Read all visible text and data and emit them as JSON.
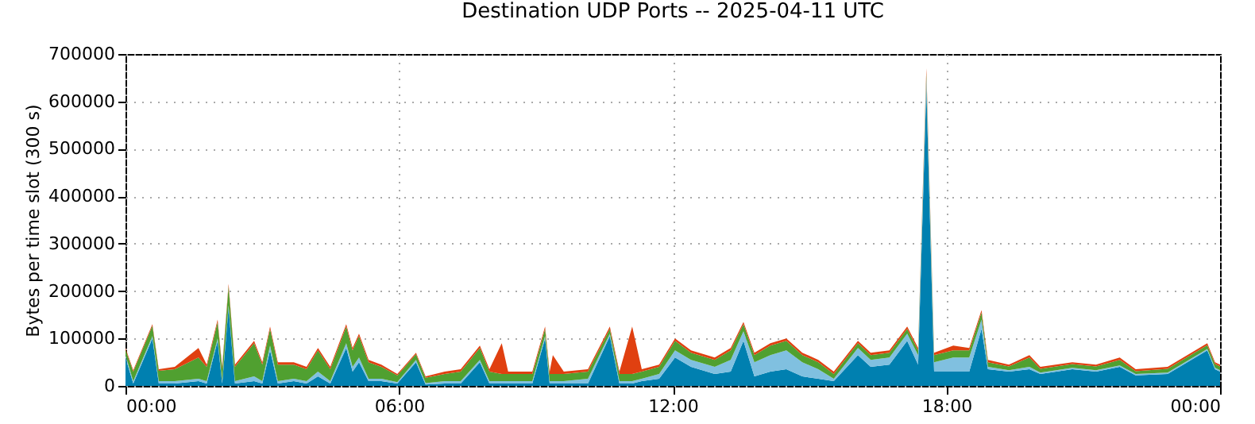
{
  "chart_data": {
    "type": "area",
    "title": "Destination UDP Ports -- 2025-04-11 UTC",
    "ylabel": "Bytes per time slot (300 s)",
    "stacked": true,
    "grid": true,
    "x": [
      0,
      0.17,
      0.59,
      0.73,
      1.08,
      1.6,
      1.78,
      2.02,
      2.12,
      2.26,
      2.4,
      2.82,
      3.0,
      3.17,
      3.34,
      3.69,
      3.97,
      4.22,
      4.49,
      4.84,
      4.98,
      5.12,
      5.33,
      5.61,
      5.96,
      6.37,
      6.58,
      7.0,
      7.35,
      7.77,
      7.98,
      8.25,
      8.39,
      8.92,
      9.2,
      9.3,
      9.37,
      9.61,
      10.14,
      10.62,
      10.83,
      11.11,
      11.32,
      11.7,
      12.05,
      12.4,
      12.92,
      13.27,
      13.55,
      13.79,
      14.14,
      14.49,
      14.84,
      15.19,
      15.53,
      16.06,
      16.34,
      16.75,
      17.14,
      17.38,
      17.56,
      17.73,
      18.15,
      18.5,
      18.77,
      18.91,
      19.37,
      19.82,
      20.06,
      20.76,
      21.28,
      21.8,
      22.15,
      22.85,
      23.72,
      23.89,
      24.0
    ],
    "series": [
      {
        "color": "#0080b0",
        "values": [
          60000,
          5000,
          100000,
          5000,
          5000,
          10000,
          5000,
          95000,
          5000,
          165000,
          5000,
          10000,
          5000,
          75000,
          5000,
          10000,
          5000,
          20000,
          5000,
          80000,
          30000,
          50000,
          10000,
          10000,
          5000,
          50000,
          3000,
          5000,
          5000,
          50000,
          5000,
          5000,
          5000,
          5000,
          100000,
          5000,
          5000,
          5000,
          5000,
          105000,
          5000,
          5000,
          10000,
          15000,
          60000,
          40000,
          25000,
          30000,
          95000,
          20000,
          30000,
          35000,
          20000,
          15000,
          10000,
          65000,
          40000,
          45000,
          95000,
          45000,
          630000,
          30000,
          30000,
          30000,
          120000,
          35000,
          30000,
          35000,
          25000,
          35000,
          30000,
          40000,
          22000,
          25000,
          75000,
          35000,
          30000
        ]
      },
      {
        "color": "#80c0e0",
        "values": [
          5000,
          5000,
          5000,
          5000,
          5000,
          5000,
          5000,
          5000,
          5000,
          5000,
          5000,
          10000,
          5000,
          10000,
          5000,
          5000,
          5000,
          10000,
          5000,
          10000,
          10000,
          10000,
          5000,
          5000,
          3000,
          5000,
          3000,
          5000,
          5000,
          5000,
          5000,
          5000,
          5000,
          5000,
          5000,
          5000,
          5000,
          5000,
          10000,
          5000,
          5000,
          5000,
          5000,
          10000,
          15000,
          15000,
          15000,
          25000,
          20000,
          30000,
          35000,
          40000,
          30000,
          20000,
          5000,
          15000,
          15000,
          15000,
          15000,
          20000,
          20000,
          20000,
          30000,
          30000,
          20000,
          5000,
          3000,
          5000,
          3000,
          3000,
          3000,
          3000,
          3000,
          3000,
          3000,
          3000,
          3000
        ]
      },
      {
        "color": "#50a030",
        "values": [
          12000,
          20000,
          22000,
          22000,
          25000,
          45000,
          30000,
          35000,
          25000,
          40000,
          30000,
          70000,
          35000,
          35000,
          35000,
          30000,
          25000,
          45000,
          25000,
          35000,
          35000,
          45000,
          35000,
          25000,
          14000,
          12000,
          11000,
          15000,
          20000,
          25000,
          20000,
          15000,
          15000,
          15000,
          15000,
          15000,
          15000,
          15000,
          15000,
          10000,
          15000,
          15000,
          15000,
          15000,
          20000,
          15000,
          15000,
          20000,
          15000,
          15000,
          20000,
          20000,
          15000,
          15000,
          10000,
          10000,
          10000,
          10000,
          10000,
          10000,
          10000,
          15000,
          15000,
          15000,
          15000,
          10000,
          8000,
          20000,
          8000,
          8000,
          8000,
          12000,
          6000,
          8000,
          8000,
          8000,
          8000
        ]
      },
      {
        "color": "#e04010",
        "values": [
          3000,
          3000,
          3000,
          3000,
          5000,
          20000,
          5000,
          5000,
          5000,
          5000,
          5000,
          5000,
          5000,
          5000,
          5000,
          5000,
          5000,
          5000,
          5000,
          5000,
          5000,
          5000,
          5000,
          5000,
          3000,
          3000,
          3000,
          5000,
          5000,
          5000,
          5000,
          65000,
          5000,
          5000,
          5000,
          5000,
          40000,
          5000,
          5000,
          5000,
          5000,
          100000,
          5000,
          5000,
          5000,
          5000,
          5000,
          5000,
          5000,
          5000,
          5000,
          5000,
          5000,
          5000,
          5000,
          5000,
          5000,
          5000,
          5000,
          5000,
          10000,
          5000,
          10000,
          5000,
          5000,
          5000,
          4000,
          5000,
          4000,
          4000,
          4000,
          5000,
          4000,
          4000,
          4000,
          4000,
          4000
        ]
      }
    ],
    "xlim": [
      0,
      24
    ],
    "xticks": [
      {
        "value": 0,
        "label": "00:00"
      },
      {
        "value": 6,
        "label": "06:00"
      },
      {
        "value": 12,
        "label": "12:00"
      },
      {
        "value": 18,
        "label": "18:00"
      },
      {
        "value": 24,
        "label": "00:00"
      }
    ],
    "ylim": [
      0,
      700000
    ],
    "yticks": [
      0,
      100000,
      200000,
      300000,
      400000,
      500000,
      600000,
      700000
    ]
  }
}
